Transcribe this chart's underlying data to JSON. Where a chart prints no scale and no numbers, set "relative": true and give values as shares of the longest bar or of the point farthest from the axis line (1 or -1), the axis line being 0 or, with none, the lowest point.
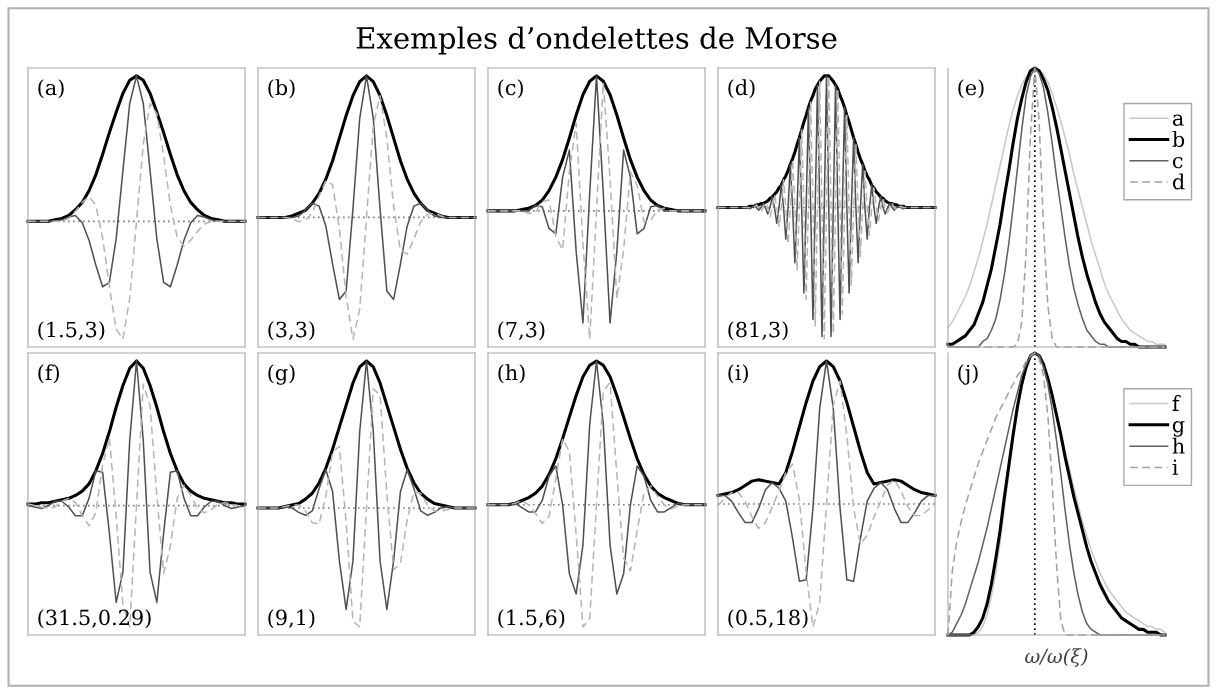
{
  "chart_data": [
    {
      "type": "line",
      "relative": true,
      "annotations": [
        "(a)",
        "(1.5,3)"
      ],
      "categories": [
        null,
        null,
        null,
        null,
        null,
        null,
        null,
        null,
        null,
        null,
        null,
        null,
        null,
        null,
        null,
        null,
        null,
        null,
        null,
        null,
        null,
        null,
        null,
        null,
        null,
        null,
        null,
        null,
        null,
        null,
        null,
        null,
        null
      ],
      "ref_lines": [
        {
          "axis": "y",
          "value": 0,
          "color": "#808080",
          "line_style": "dotted"
        }
      ],
      "series": [
        {
          "color": "#000000",
          "line_style": "solid",
          "values": [
            0,
            0,
            0,
            0,
            0.01,
            0.02,
            0.04,
            0.08,
            0.13,
            0.21,
            0.32,
            0.46,
            0.61,
            0.75,
            0.88,
            0.97,
            1,
            0.97,
            0.88,
            0.75,
            0.61,
            0.46,
            0.32,
            0.21,
            0.13,
            0.08,
            0.04,
            0.02,
            0.01,
            0,
            0,
            0,
            0
          ]
        },
        {
          "color": "#505050",
          "line_style": "solid",
          "values": [
            0,
            0,
            0,
            0,
            0,
            0.01,
            0.03,
            0.04,
            -0.01,
            -0.13,
            -0.3,
            -0.45,
            -0.42,
            -0.12,
            0.35,
            0.81,
            1,
            0.81,
            0.35,
            -0.12,
            -0.42,
            -0.45,
            -0.3,
            -0.13,
            -0.01,
            0.04,
            0.03,
            0.01,
            0,
            0,
            0,
            0,
            0
          ]
        },
        {
          "color": "#b4b4b4",
          "line_style": "dashed",
          "values": [
            0,
            0,
            0,
            0,
            0,
            0,
            0.02,
            0.07,
            0.13,
            0.17,
            0.11,
            -0.11,
            -0.45,
            -0.74,
            -0.81,
            -0.53,
            0,
            0.53,
            0.81,
            0.74,
            0.45,
            0.11,
            -0.11,
            -0.17,
            -0.13,
            -0.07,
            -0.02,
            0,
            0,
            0,
            0,
            0,
            0
          ]
        }
      ]
    },
    {
      "type": "line",
      "relative": true,
      "annotations": [
        "(b)",
        "(3,3)"
      ],
      "categories": [
        null,
        null,
        null,
        null,
        null,
        null,
        null,
        null,
        null,
        null,
        null,
        null,
        null,
        null,
        null,
        null,
        null,
        null,
        null,
        null,
        null,
        null,
        null,
        null,
        null,
        null,
        null,
        null,
        null,
        null,
        null,
        null,
        null
      ],
      "ref_lines": [
        {
          "axis": "y",
          "value": 0,
          "color": "#808080",
          "line_style": "dotted"
        }
      ],
      "series": [
        {
          "color": "#000000",
          "line_style": "solid",
          "values": [
            0,
            0,
            0,
            0,
            0,
            0.01,
            0.03,
            0.05,
            0.1,
            0.17,
            0.27,
            0.4,
            0.56,
            0.72,
            0.86,
            0.96,
            1,
            0.96,
            0.86,
            0.72,
            0.56,
            0.4,
            0.27,
            0.17,
            0.1,
            0.05,
            0.03,
            0.01,
            0,
            0,
            0,
            0,
            0
          ]
        },
        {
          "color": "#505050",
          "line_style": "solid",
          "values": [
            0,
            0,
            0,
            0,
            0,
            0,
            0.01,
            0.05,
            0.1,
            0.08,
            -0.06,
            -0.33,
            -0.58,
            -0.52,
            0.06,
            0.7,
            1,
            0.7,
            0.06,
            -0.52,
            -0.58,
            -0.33,
            -0.06,
            0.08,
            0.1,
            0.05,
            0.01,
            0,
            0,
            0,
            0,
            0,
            0
          ]
        },
        {
          "color": "#b4b4b4",
          "line_style": "dashed",
          "values": [
            0,
            0,
            0,
            0,
            0,
            -0.01,
            -0.03,
            -0.02,
            0.03,
            0.15,
            0.26,
            0.23,
            -0.08,
            -0.56,
            -0.86,
            -0.65,
            0,
            0.65,
            0.86,
            0.56,
            0.08,
            -0.23,
            -0.26,
            -0.15,
            -0.03,
            0.02,
            0.03,
            0.01,
            0,
            0,
            0,
            0,
            0
          ]
        }
      ]
    },
    {
      "type": "line",
      "title": "Exemples d’ondelettes de Morse",
      "relative": true,
      "annotations": [
        "(c)",
        "(7,3)"
      ],
      "categories": [
        null,
        null,
        null,
        null,
        null,
        null,
        null,
        null,
        null,
        null,
        null,
        null,
        null,
        null,
        null,
        null,
        null,
        null,
        null,
        null,
        null,
        null,
        null,
        null,
        null,
        null,
        null,
        null,
        null,
        null,
        null,
        null,
        null
      ],
      "ref_lines": [
        {
          "axis": "y",
          "value": 0,
          "color": "#808080",
          "line_style": "dotted"
        }
      ],
      "series": [
        {
          "color": "#000000",
          "line_style": "solid",
          "values": [
            0,
            0,
            0,
            0,
            0,
            0.01,
            0.02,
            0.04,
            0.08,
            0.15,
            0.25,
            0.38,
            0.54,
            0.71,
            0.86,
            0.96,
            1,
            0.96,
            0.86,
            0.71,
            0.54,
            0.38,
            0.25,
            0.15,
            0.08,
            0.04,
            0.02,
            0.01,
            0,
            0,
            0,
            0,
            0
          ]
        },
        {
          "color": "#505050",
          "line_style": "solid",
          "values": [
            0,
            0,
            0,
            0,
            0,
            0,
            0,
            0.04,
            0.03,
            -0.13,
            -0.17,
            0.25,
            0.45,
            -0.3,
            -0.83,
            0.13,
            1,
            0.13,
            -0.83,
            -0.3,
            0.45,
            0.25,
            -0.17,
            -0.13,
            0.03,
            0.04,
            0,
            0,
            0,
            0,
            0,
            0,
            0
          ]
        },
        {
          "color": "#b4b4b4",
          "line_style": "dashed",
          "values": [
            0,
            0,
            0,
            0,
            0,
            0,
            -0.02,
            -0.01,
            0.07,
            0.08,
            -0.19,
            -0.29,
            0.29,
            0.65,
            -0.24,
            -0.95,
            0,
            0.95,
            0.24,
            -0.65,
            -0.29,
            0.29,
            0.19,
            -0.08,
            -0.07,
            0.01,
            0.02,
            0,
            0,
            0,
            0,
            0,
            0
          ]
        }
      ]
    },
    {
      "type": "line",
      "relative": true,
      "annotations": [
        "(d)",
        "(81,3)"
      ],
      "categories": [
        null,
        null,
        null,
        null,
        null,
        null,
        null,
        null,
        null,
        null,
        null,
        null,
        null,
        null,
        null,
        null,
        null,
        null,
        null,
        null,
        null,
        null,
        null,
        null,
        null,
        null,
        null,
        null,
        null,
        null,
        null,
        null,
        null,
        null,
        null,
        null,
        null,
        null,
        null,
        null,
        null,
        null,
        null,
        null,
        null,
        null,
        null,
        null,
        null,
        null,
        null,
        null,
        null,
        null,
        null,
        null,
        null,
        null,
        null,
        null,
        null,
        null,
        null,
        null,
        null,
        null,
        null,
        null,
        null,
        null,
        null,
        null,
        null,
        null,
        null,
        null,
        null,
        null,
        null,
        null,
        null,
        null,
        null,
        null,
        null,
        null,
        null,
        null,
        null,
        null,
        null,
        null,
        null,
        null,
        null,
        null,
        null
      ],
      "ref_lines": [
        {
          "axis": "y",
          "value": 0,
          "color": "#808080",
          "line_style": "dotted"
        }
      ],
      "series": [
        {
          "color": "#000000",
          "line_style": "solid",
          "values": [
            0,
            0,
            0,
            0,
            0,
            0,
            0,
            0,
            0,
            0,
            0,
            0,
            0,
            0,
            0.01,
            0.01,
            0.01,
            0.02,
            0.02,
            0.03,
            0.03,
            0.04,
            0.05,
            0.07,
            0.08,
            0.1,
            0.12,
            0.15,
            0.17,
            0.21,
            0.24,
            0.28,
            0.33,
            0.37,
            0.42,
            0.48,
            0.53,
            0.59,
            0.65,
            0.7,
            0.76,
            0.81,
            0.85,
            0.9,
            0.93,
            0.96,
            0.98,
            1,
            1,
            1,
            0.98,
            0.96,
            0.93,
            0.9,
            0.85,
            0.81,
            0.76,
            0.7,
            0.65,
            0.59,
            0.53,
            0.48,
            0.42,
            0.37,
            0.33,
            0.28,
            0.24,
            0.21,
            0.17,
            0.15,
            0.12,
            0.1,
            0.08,
            0.07,
            0.05,
            0.04,
            0.03,
            0.03,
            0.02,
            0.02,
            0.01,
            0.01,
            0.01,
            0,
            0,
            0,
            0,
            0,
            0,
            0,
            0,
            0,
            0,
            0,
            0,
            0,
            0
          ]
        },
        {
          "color": "#505050",
          "line_style": "solid",
          "values": [
            0,
            0,
            0,
            0,
            0,
            0,
            0,
            0,
            0,
            0,
            0,
            0,
            0,
            0,
            -0.01,
            0,
            0.01,
            0,
            -0.02,
            0,
            0.03,
            0,
            -0.05,
            0,
            0.08,
            0,
            -0.12,
            0,
            0.17,
            0,
            -0.24,
            0,
            0.33,
            0,
            -0.42,
            0,
            0.53,
            0,
            -0.65,
            0,
            0.76,
            0,
            -0.85,
            0,
            0.93,
            0,
            -0.98,
            0,
            1,
            0,
            -0.98,
            0,
            0.93,
            0,
            -0.85,
            0,
            0.76,
            0,
            -0.65,
            0,
            0.53,
            0,
            -0.42,
            0,
            0.33,
            0,
            -0.24,
            0,
            0.17,
            0,
            -0.12,
            0,
            0.08,
            0,
            -0.05,
            0,
            0.03,
            0,
            -0.02,
            0,
            0.01,
            0,
            -0.01,
            0,
            0,
            0,
            0,
            0,
            0,
            0,
            0,
            0,
            0,
            0,
            0,
            0,
            0
          ]
        },
        {
          "color": "#b4b4b4",
          "line_style": "dashed",
          "values": [
            0,
            0,
            0,
            0,
            0,
            0,
            0,
            0,
            0,
            0,
            0,
            0,
            0,
            0,
            0,
            -0.01,
            0,
            0.02,
            0,
            -0.03,
            0,
            0.04,
            0,
            -0.07,
            0,
            0.1,
            0,
            -0.15,
            0,
            0.21,
            0,
            -0.28,
            0,
            0.37,
            0,
            -0.48,
            0,
            0.59,
            0,
            -0.7,
            0,
            0.81,
            0,
            -0.9,
            0,
            0.96,
            0,
            -1,
            0,
            1,
            0,
            -0.96,
            0,
            0.9,
            0,
            -0.81,
            0,
            0.7,
            0,
            -0.59,
            0,
            0.48,
            0,
            -0.37,
            0,
            0.28,
            0,
            -0.21,
            0,
            0.15,
            0,
            -0.1,
            0,
            0.07,
            0,
            -0.04,
            0,
            0.03,
            0,
            -0.02,
            0,
            0.01,
            0,
            0,
            0,
            0,
            0,
            0,
            0,
            0,
            0,
            0,
            0,
            0,
            0,
            0,
            0
          ]
        }
      ]
    },
    {
      "type": "line",
      "relative": true,
      "annotations": [
        "(e)"
      ],
      "categories": [
        null,
        null,
        null,
        null,
        null,
        null,
        null,
        null,
        null,
        null,
        null,
        null,
        null,
        null,
        null,
        null,
        null,
        null,
        null,
        null,
        null,
        null,
        null,
        null,
        null,
        null,
        null,
        null,
        null,
        null,
        null,
        null,
        null,
        null,
        null,
        null,
        null,
        null,
        null,
        null,
        null,
        null,
        null,
        null,
        null,
        null,
        null,
        null,
        null,
        null,
        null
      ],
      "legend": "top right",
      "ref_lines": [
        {
          "axis": "x",
          "color": "#000000",
          "line_style": "dotted"
        }
      ],
      "series": [
        {
          "name": "a",
          "color": "#c8c8c8",
          "line_style": "solid",
          "values": [
            0.07,
            0.09,
            0.12,
            0.15,
            0.18,
            0.22,
            0.27,
            0.32,
            0.38,
            0.44,
            0.51,
            0.58,
            0.65,
            0.72,
            0.79,
            0.85,
            0.9,
            0.94,
            0.97,
            0.99,
            1,
            0.99,
            0.98,
            0.95,
            0.91,
            0.86,
            0.81,
            0.75,
            0.69,
            0.62,
            0.56,
            0.5,
            0.44,
            0.38,
            0.33,
            0.28,
            0.23,
            0.19,
            0.16,
            0.13,
            0.1,
            0.08,
            0.06,
            0.05,
            0.04,
            0.03,
            0.02,
            0.02,
            0.01,
            0.01,
            0.01
          ]
        },
        {
          "name": "b",
          "color": "#000000",
          "line_style": "solid",
          "values": [
            0.01,
            0.01,
            0.02,
            0.03,
            0.04,
            0.06,
            0.08,
            0.12,
            0.16,
            0.22,
            0.28,
            0.36,
            0.44,
            0.54,
            0.63,
            0.73,
            0.82,
            0.89,
            0.95,
            0.99,
            1,
            0.99,
            0.96,
            0.92,
            0.86,
            0.79,
            0.71,
            0.63,
            0.55,
            0.47,
            0.39,
            0.32,
            0.26,
            0.21,
            0.16,
            0.12,
            0.09,
            0.07,
            0.05,
            0.03,
            0.02,
            0.02,
            0.01,
            0.01,
            0,
            0,
            0,
            0,
            0,
            0,
            0
          ]
        },
        {
          "name": "c",
          "color": "#606060",
          "line_style": "solid",
          "values": [
            0,
            0,
            0,
            0,
            0,
            0,
            0,
            0,
            0.02,
            0.03,
            0.06,
            0.1,
            0.17,
            0.26,
            0.37,
            0.5,
            0.64,
            0.78,
            0.9,
            0.97,
            1,
            0.98,
            0.93,
            0.84,
            0.73,
            0.61,
            0.5,
            0.39,
            0.29,
            0.21,
            0.15,
            0.1,
            0.06,
            0.04,
            0.02,
            0.01,
            0.01,
            0,
            0,
            0,
            0,
            0,
            0,
            0,
            0,
            0,
            0,
            0,
            0,
            0,
            0
          ]
        },
        {
          "name": "d",
          "color": "#a0a0a0",
          "line_style": "dashed",
          "values": [
            0,
            0,
            0,
            0,
            0,
            0,
            0,
            0,
            0,
            0,
            0,
            0,
            0,
            0,
            0,
            0,
            0.01,
            0.09,
            0.34,
            0.76,
            1,
            0.81,
            0.43,
            0.15,
            0.03,
            0,
            0,
            0,
            0,
            0,
            0,
            0,
            0,
            0,
            0,
            0,
            0,
            0,
            0,
            0,
            0,
            0,
            0,
            0,
            0,
            0,
            0,
            0,
            0,
            0,
            0
          ]
        }
      ]
    },
    {
      "type": "line",
      "relative": true,
      "annotations": [
        "(f)",
        "(31.5,0.29)"
      ],
      "categories": [
        null,
        null,
        null,
        null,
        null,
        null,
        null,
        null,
        null,
        null,
        null,
        null,
        null,
        null,
        null,
        null,
        null,
        null,
        null,
        null,
        null,
        null,
        null,
        null,
        null,
        null,
        null,
        null,
        null,
        null,
        null,
        null,
        null
      ],
      "ref_lines": [
        {
          "axis": "y",
          "value": 0,
          "color": "#808080",
          "line_style": "dotted"
        }
      ],
      "series": [
        {
          "color": "#000000",
          "line_style": "solid",
          "values": [
            0.01,
            0.01,
            0.02,
            0.02,
            0.03,
            0.04,
            0.05,
            0.07,
            0.1,
            0.15,
            0.24,
            0.36,
            0.51,
            0.68,
            0.83,
            0.95,
            1,
            0.95,
            0.83,
            0.68,
            0.51,
            0.36,
            0.24,
            0.15,
            0.1,
            0.07,
            0.05,
            0.04,
            0.03,
            0.02,
            0.02,
            0.01,
            0.01
          ]
        },
        {
          "color": "#505050",
          "line_style": "solid",
          "values": [
            0,
            -0.01,
            -0.02,
            0,
            0.03,
            0.03,
            -0.01,
            -0.07,
            -0.07,
            0.05,
            0.24,
            0.23,
            -0.19,
            -0.67,
            -0.46,
            0.45,
            1,
            0.45,
            -0.46,
            -0.67,
            -0.19,
            0.23,
            0.24,
            0.05,
            -0.07,
            -0.07,
            -0.01,
            0.03,
            0.03,
            0,
            -0.02,
            -0.01,
            0
          ]
        },
        {
          "color": "#b4b4b4",
          "line_style": "dashed",
          "values": [
            0.01,
            0,
            -0.01,
            -0.02,
            -0.01,
            0.03,
            0.05,
            0.02,
            -0.07,
            -0.14,
            -0.05,
            0.28,
            0.47,
            -0.07,
            -0.69,
            -0.84,
            0,
            0.84,
            0.69,
            0.07,
            -0.47,
            -0.28,
            0.05,
            0.14,
            0.07,
            -0.02,
            -0.05,
            -0.03,
            0.01,
            0.02,
            0.01,
            0,
            -0.01
          ]
        }
      ]
    },
    {
      "type": "line",
      "relative": true,
      "annotations": [
        "(g)",
        "(9,1)"
      ],
      "categories": [
        null,
        null,
        null,
        null,
        null,
        null,
        null,
        null,
        null,
        null,
        null,
        null,
        null,
        null,
        null,
        null,
        null,
        null,
        null,
        null,
        null,
        null,
        null,
        null,
        null,
        null,
        null,
        null,
        null,
        null,
        null,
        null,
        null
      ],
      "ref_lines": [
        {
          "axis": "y",
          "value": 0,
          "color": "#808080",
          "line_style": "dotted"
        }
      ],
      "series": [
        {
          "color": "#000000",
          "line_style": "solid",
          "values": [
            0,
            0,
            0,
            0,
            0.01,
            0.02,
            0.03,
            0.06,
            0.1,
            0.17,
            0.27,
            0.4,
            0.55,
            0.7,
            0.85,
            0.96,
            1,
            0.96,
            0.85,
            0.7,
            0.55,
            0.4,
            0.27,
            0.17,
            0.1,
            0.06,
            0.03,
            0.02,
            0.01,
            0,
            0,
            0,
            0
          ]
        },
        {
          "color": "#505050",
          "line_style": "solid",
          "values": [
            0,
            0,
            0,
            0,
            0.01,
            0,
            -0.03,
            -0.05,
            -0.02,
            0.13,
            0.26,
            0.11,
            -0.36,
            -0.69,
            -0.36,
            0.52,
            1,
            0.52,
            -0.36,
            -0.69,
            -0.36,
            0.11,
            0.26,
            0.13,
            -0.02,
            -0.05,
            -0.03,
            0,
            0.01,
            0,
            0,
            0,
            0
          ]
        },
        {
          "color": "#b4b4b4",
          "line_style": "dashed",
          "values": [
            0,
            0,
            0,
            0,
            0.01,
            0.02,
            0.02,
            -0.02,
            -0.1,
            -0.11,
            0.08,
            0.38,
            0.42,
            -0.1,
            -0.77,
            -0.81,
            0,
            0.81,
            0.77,
            0.1,
            -0.42,
            -0.38,
            -0.08,
            0.11,
            0.1,
            0.02,
            -0.02,
            -0.02,
            -0.01,
            0,
            0,
            0,
            0
          ]
        }
      ]
    },
    {
      "type": "line",
      "relative": true,
      "annotations": [
        "(h)",
        "(1.5,6)"
      ],
      "categories": [
        null,
        null,
        null,
        null,
        null,
        null,
        null,
        null,
        null,
        null,
        null,
        null,
        null,
        null,
        null,
        null,
        null,
        null,
        null,
        null,
        null,
        null,
        null,
        null,
        null,
        null,
        null,
        null,
        null,
        null,
        null,
        null,
        null
      ],
      "ref_lines": [
        {
          "axis": "y",
          "value": 0,
          "color": "#808080",
          "line_style": "dotted"
        }
      ],
      "series": [
        {
          "color": "#000000",
          "line_style": "solid",
          "values": [
            0,
            0,
            0,
            0,
            0.01,
            0.03,
            0.05,
            0.08,
            0.13,
            0.21,
            0.32,
            0.46,
            0.61,
            0.76,
            0.89,
            0.97,
            1,
            0.97,
            0.89,
            0.76,
            0.61,
            0.46,
            0.32,
            0.21,
            0.13,
            0.08,
            0.05,
            0.03,
            0.01,
            0,
            0,
            0,
            0
          ]
        },
        {
          "color": "#505050",
          "line_style": "solid",
          "values": [
            0,
            0,
            0,
            0,
            0.01,
            -0.02,
            -0.05,
            -0.05,
            0.03,
            0.2,
            0.27,
            0,
            -0.48,
            -0.62,
            -0.28,
            0.56,
            1,
            0.56,
            -0.28,
            -0.62,
            -0.48,
            0,
            0.27,
            0.2,
            0.03,
            -0.05,
            -0.05,
            -0.02,
            0.01,
            0,
            0,
            0,
            0
          ]
        },
        {
          "color": "#b4b4b4",
          "line_style": "dashed",
          "values": [
            0,
            0,
            0,
            0,
            0.01,
            0.03,
            0,
            -0.06,
            -0.13,
            -0.08,
            0.18,
            0.46,
            0.37,
            -0.21,
            -0.85,
            -0.79,
            0,
            0.79,
            0.85,
            0.21,
            -0.37,
            -0.46,
            -0.18,
            0.08,
            0.13,
            0.06,
            0,
            -0.03,
            -0.01,
            0,
            0,
            0,
            0
          ]
        }
      ]
    },
    {
      "type": "line",
      "relative": true,
      "annotations": [
        "(i)",
        "(0.5,18)"
      ],
      "categories": [
        null,
        null,
        null,
        null,
        null,
        null,
        null,
        null,
        null,
        null,
        null,
        null,
        null,
        null,
        null,
        null,
        null,
        null,
        null,
        null,
        null,
        null,
        null,
        null,
        null,
        null,
        null,
        null,
        null,
        null,
        null,
        null,
        null
      ],
      "ref_lines": [
        {
          "axis": "y",
          "value": 0,
          "color": "#808080",
          "line_style": "dotted"
        }
      ],
      "series": [
        {
          "color": "#000000",
          "line_style": "solid",
          "values": [
            0.06,
            0.07,
            0.08,
            0.1,
            0.13,
            0.16,
            0.17,
            0.16,
            0.15,
            0.14,
            0.22,
            0.37,
            0.54,
            0.71,
            0.86,
            0.96,
            1,
            0.96,
            0.86,
            0.71,
            0.54,
            0.37,
            0.22,
            0.14,
            0.15,
            0.16,
            0.17,
            0.16,
            0.13,
            0.1,
            0.08,
            0.07,
            0.06
          ]
        },
        {
          "color": "#505050",
          "line_style": "solid",
          "values": [
            0.06,
            0.06,
            0.02,
            -0.06,
            -0.13,
            -0.13,
            -0.03,
            0.1,
            0.15,
            0.11,
            0.02,
            -0.24,
            -0.54,
            -0.53,
            -0.03,
            0.67,
            1,
            0.67,
            -0.03,
            -0.53,
            -0.54,
            -0.24,
            0.02,
            0.11,
            0.15,
            0.1,
            -0.03,
            -0.13,
            -0.13,
            -0.06,
            0.02,
            0.06,
            0.06
          ]
        },
        {
          "color": "#b4b4b4",
          "line_style": "dashed",
          "values": [
            -0.01,
            0.04,
            0.08,
            0.08,
            0.02,
            -0.09,
            -0.17,
            -0.13,
            -0.02,
            0.09,
            0.22,
            0.28,
            0.03,
            -0.48,
            -0.86,
            -0.69,
            0,
            0.69,
            0.86,
            0.48,
            -0.03,
            -0.28,
            -0.22,
            -0.09,
            0.02,
            0.13,
            0.17,
            0.09,
            -0.02,
            -0.08,
            -0.08,
            -0.04,
            0.01
          ]
        }
      ]
    },
    {
      "type": "line",
      "relative": true,
      "annotations": [
        "(j)"
      ],
      "xlabel": "ω/ω(ξ)",
      "categories": [
        null,
        null,
        null,
        null,
        null,
        null,
        null,
        null,
        null,
        null,
        null,
        null,
        null,
        null,
        null,
        null,
        null,
        null,
        null,
        null,
        null,
        null,
        null,
        null,
        null,
        null,
        null,
        null,
        null,
        null,
        null,
        null,
        null,
        null,
        null,
        null,
        null,
        null,
        null,
        null,
        null,
        null,
        null,
        null,
        null,
        null,
        null,
        null,
        null,
        null,
        null
      ],
      "legend": "top right",
      "ref_lines": [
        {
          "axis": "x",
          "color": "#000000",
          "line_style": "dotted"
        }
      ],
      "series": [
        {
          "name": "f",
          "color": "#c8c8c8",
          "line_style": "solid",
          "values": [
            0,
            0,
            0,
            0,
            0,
            0,
            0,
            0.01,
            0.03,
            0.07,
            0.14,
            0.22,
            0.33,
            0.45,
            0.57,
            0.69,
            0.79,
            0.88,
            0.95,
            0.99,
            1,
            0.99,
            0.96,
            0.91,
            0.86,
            0.79,
            0.72,
            0.65,
            0.59,
            0.52,
            0.46,
            0.4,
            0.35,
            0.3,
            0.26,
            0.22,
            0.19,
            0.16,
            0.14,
            0.12,
            0.1,
            0.08,
            0.07,
            0.06,
            0.05,
            0.04,
            0.03,
            0.03,
            0.02,
            0.02,
            0.01
          ]
        },
        {
          "name": "g",
          "color": "#000000",
          "line_style": "solid",
          "values": [
            0,
            0,
            0,
            0,
            0,
            0,
            0.01,
            0.03,
            0.06,
            0.11,
            0.18,
            0.27,
            0.37,
            0.49,
            0.6,
            0.71,
            0.81,
            0.89,
            0.95,
            0.99,
            1,
            0.99,
            0.96,
            0.91,
            0.85,
            0.78,
            0.71,
            0.63,
            0.56,
            0.49,
            0.43,
            0.37,
            0.31,
            0.26,
            0.22,
            0.18,
            0.15,
            0.12,
            0.1,
            0.08,
            0.06,
            0.05,
            0.04,
            0.03,
            0.02,
            0.02,
            0.01,
            0.01,
            0.01,
            0,
            0
          ]
        },
        {
          "name": "h",
          "color": "#606060",
          "line_style": "solid",
          "values": [
            0,
            0.01,
            0.04,
            0.07,
            0.11,
            0.16,
            0.21,
            0.26,
            0.32,
            0.38,
            0.45,
            0.52,
            0.59,
            0.66,
            0.73,
            0.8,
            0.86,
            0.92,
            0.96,
            0.99,
            1,
            0.99,
            0.95,
            0.89,
            0.8,
            0.69,
            0.57,
            0.44,
            0.32,
            0.22,
            0.14,
            0.08,
            0.04,
            0.02,
            0.01,
            0,
            0,
            0,
            0,
            0,
            0,
            0,
            0,
            0,
            0,
            0,
            0,
            0,
            0,
            0,
            0
          ]
        },
        {
          "name": "i",
          "color": "#a0a0a0",
          "line_style": "dashed",
          "values": [
            0,
            0.23,
            0.33,
            0.4,
            0.46,
            0.51,
            0.56,
            0.61,
            0.65,
            0.69,
            0.73,
            0.77,
            0.8,
            0.83,
            0.86,
            0.89,
            0.92,
            0.94,
            0.97,
            0.99,
            1,
            0.98,
            0.92,
            0.78,
            0.54,
            0.25,
            0.05,
            0,
            0,
            0,
            0,
            0,
            0,
            0,
            0,
            0,
            0,
            0,
            0,
            0,
            0,
            0,
            0,
            0,
            0,
            0,
            0,
            0,
            0,
            0,
            0
          ]
        }
      ]
    }
  ]
}
